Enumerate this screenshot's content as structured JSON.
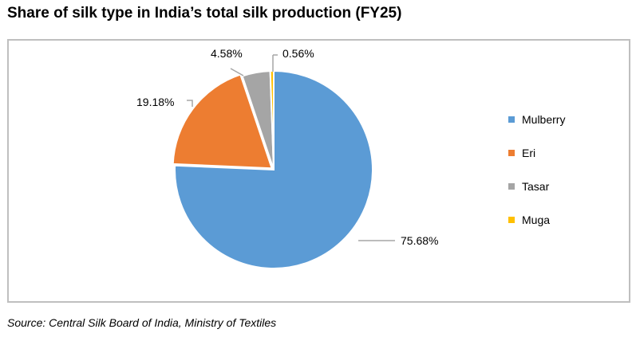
{
  "header": {
    "title": "Share of silk type in India’s total silk production (FY25)"
  },
  "footer": {
    "source": "Source: Central Silk Board of India, Ministry of Textiles"
  },
  "legend": {
    "items": [
      {
        "label": "Mulberry",
        "color": "#5b9bd5"
      },
      {
        "label": "Eri",
        "color": "#ed7d31"
      },
      {
        "label": "Tasar",
        "color": "#a5a5a5"
      },
      {
        "label": "Muga",
        "color": "#ffc000"
      }
    ]
  },
  "labels": {
    "mulberry": "75.68%",
    "eri": "19.18%",
    "tasar": "4.58%",
    "muga": "0.56%"
  },
  "chart_data": {
    "type": "pie",
    "title": "Share of silk type in India’s total silk production (FY25)",
    "categories": [
      "Mulberry",
      "Eri",
      "Tasar",
      "Muga"
    ],
    "values": [
      75.68,
      19.18,
      4.58,
      0.56
    ],
    "unit": "%",
    "colors": [
      "#5b9bd5",
      "#ed7d31",
      "#a5a5a5",
      "#ffc000"
    ],
    "data_labels": [
      "75.68%",
      "19.18%",
      "4.58%",
      "0.56%"
    ],
    "legend_position": "right",
    "start_angle_deg": 0,
    "direction": "clockwise",
    "source": "Source: Central Silk Board of India, Ministry of Textiles"
  }
}
